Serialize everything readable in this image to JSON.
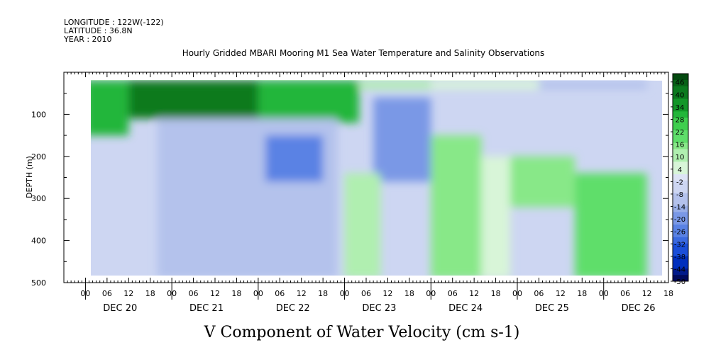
{
  "header": {
    "longitude": "LONGITUDE : 122W(-122)",
    "latitude": "LATITUDE : 36.8N",
    "year": "YEAR : 2010"
  },
  "chart_data": {
    "type": "heatmap",
    "title": "Hourly Gridded MBARI Mooring M1 Sea Water Temperature and Salinity Observations",
    "variable_label": "V Component of Water Velocity (cm s-1)",
    "ylabel": "DEPTH (m)",
    "y_reversed": true,
    "ylim": [
      500,
      0
    ],
    "y_ticks": [
      100,
      200,
      300,
      400,
      500
    ],
    "x_range_hours": [
      -6,
      162
    ],
    "hour_tick_labels": [
      "00",
      "06",
      "12",
      "18",
      "00",
      "06",
      "12",
      "18",
      "00",
      "06",
      "12",
      "18",
      "00",
      "06",
      "12",
      "18",
      "00",
      "06",
      "12",
      "18",
      "00",
      "06",
      "12",
      "18",
      "00",
      "06",
      "12",
      "18"
    ],
    "day_labels": [
      "DEC 20",
      "DEC 21",
      "DEC 22",
      "DEC 23",
      "DEC 24",
      "DEC 25",
      "DEC 26"
    ],
    "data_depth_range": [
      20,
      490
    ],
    "colorbar": {
      "labels": [
        "46",
        "40",
        "34",
        "28",
        "22",
        "16",
        "10",
        "4",
        "-2",
        "-8",
        "-14",
        "-20",
        "-26",
        "-32",
        "-38",
        "-44",
        "-50"
      ],
      "range": [
        -50,
        50
      ],
      "step": 3,
      "colors": [
        "#000a5c",
        "#001a8c",
        "#002fbe",
        "#1a4ed8",
        "#3b6ae0",
        "#5a82e4",
        "#7a98e6",
        "#98aee8",
        "#b4c2ec",
        "#cdd6f2",
        "#dde3f5",
        "#d8f5d8",
        "#b0efb0",
        "#88e888",
        "#5fde6a",
        "#3fcf4f",
        "#22b63a",
        "#129628",
        "#0b7a1e",
        "#076216",
        "#044a10"
      ]
    },
    "regions_note": "velocity field values in cm s-1",
    "field_blocks": [
      {
        "t0": 0,
        "t1": 12,
        "d0": 20,
        "d1": 150,
        "v": 28
      },
      {
        "t0": 12,
        "t1": 48,
        "d0": 20,
        "d1": 110,
        "v": 40
      },
      {
        "t0": 48,
        "t1": 76,
        "d0": 20,
        "d1": 120,
        "v": 30
      },
      {
        "t0": 76,
        "t1": 96,
        "d0": 20,
        "d1": 40,
        "v": 12
      },
      {
        "t0": 96,
        "t1": 126,
        "d0": 20,
        "d1": 40,
        "v": 6
      },
      {
        "t0": 126,
        "t1": 156,
        "d0": 20,
        "d1": 40,
        "v": -8
      },
      {
        "t0": 20,
        "t1": 70,
        "d0": 110,
        "d1": 490,
        "v": -8
      },
      {
        "t0": 50,
        "t1": 66,
        "d0": 150,
        "d1": 260,
        "v": -24
      },
      {
        "t0": 80,
        "t1": 96,
        "d0": 60,
        "d1": 260,
        "v": -20
      },
      {
        "t0": 72,
        "t1": 82,
        "d0": 240,
        "d1": 490,
        "v": 10
      },
      {
        "t0": 96,
        "t1": 110,
        "d0": 150,
        "d1": 490,
        "v": 16
      },
      {
        "t0": 110,
        "t1": 118,
        "d0": 200,
        "d1": 490,
        "v": 4
      },
      {
        "t0": 118,
        "t1": 136,
        "d0": 200,
        "d1": 320,
        "v": 16
      },
      {
        "t0": 136,
        "t1": 156,
        "d0": 240,
        "d1": 490,
        "v": 20
      }
    ]
  }
}
